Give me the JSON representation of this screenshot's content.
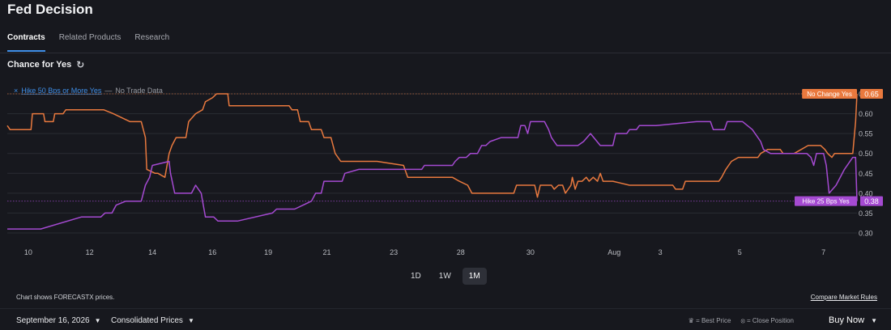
{
  "page": {
    "title": "Fed Decision"
  },
  "tabs": [
    {
      "label": "Contracts",
      "active": true
    },
    {
      "label": "Related Products",
      "active": false
    },
    {
      "label": "Research",
      "active": false
    }
  ],
  "section": {
    "title": "Chance for Yes",
    "refresh_icon": "refresh-icon"
  },
  "legend": {
    "remove_icon": "×",
    "series_label": "Hike 50 Bps or More Yes",
    "separator": "—",
    "note": "No Trade Data"
  },
  "range_buttons": [
    {
      "label": "1D",
      "active": false
    },
    {
      "label": "1W",
      "active": false
    },
    {
      "label": "1M",
      "active": true
    }
  ],
  "footnote": "Chart shows FORECASTX prices.",
  "compare_link": "Compare Market Rules",
  "bottom": {
    "date_select": "September 16, 2026",
    "price_select": "Consolidated Prices",
    "best_price_key": "= Best Price",
    "close_position_key": "= Close Position",
    "buy_now": "Buy Now",
    "best_price_icon": "crown-icon",
    "close_position_icon": "close-circle-icon"
  },
  "colors": {
    "no_change": "#e9793e",
    "hike25": "#a54ad2",
    "accent": "#3f8fe8",
    "background": "#17181e"
  },
  "chart_data": {
    "type": "line",
    "ylim": [
      0.275,
      0.675
    ],
    "y_ticks": [
      "0.30",
      "0.35",
      "0.40",
      "0.45",
      "0.50",
      "0.55",
      "0.60",
      "0.65"
    ],
    "y_tick_values": [
      0.3,
      0.35,
      0.4,
      0.45,
      0.5,
      0.55,
      0.6,
      0.65
    ],
    "x_tick_labels": [
      "10",
      "12",
      "14",
      "16",
      "19",
      "21",
      "23",
      "28",
      "30",
      "Aug",
      "3",
      "5",
      "7"
    ],
    "x_tick_positions": [
      0.3,
      4.7,
      9.2,
      13.5,
      17.5,
      21.7,
      26.5,
      31.3,
      36.3,
      42.3,
      45.6,
      51.3,
      57.3
    ],
    "xlim": [
      -1.2,
      59.7
    ],
    "grid": true,
    "series": [
      {
        "name": "No Change Yes",
        "color": "#e9793e",
        "last_label": "0.65",
        "points": [
          [
            -1.2,
            0.57
          ],
          [
            -1.0,
            0.56
          ],
          [
            0.5,
            0.56
          ],
          [
            0.6,
            0.6
          ],
          [
            1.4,
            0.6
          ],
          [
            1.5,
            0.58
          ],
          [
            2.1,
            0.58
          ],
          [
            2.2,
            0.6
          ],
          [
            2.8,
            0.6
          ],
          [
            3.0,
            0.61
          ],
          [
            5.7,
            0.61
          ],
          [
            6.4,
            0.6
          ],
          [
            7.6,
            0.58
          ],
          [
            8.4,
            0.58
          ],
          [
            8.7,
            0.54
          ],
          [
            8.8,
            0.46
          ],
          [
            9.4,
            0.45
          ],
          [
            9.6,
            0.45
          ],
          [
            10.1,
            0.44
          ],
          [
            10.4,
            0.5
          ],
          [
            10.6,
            0.52
          ],
          [
            10.9,
            0.54
          ],
          [
            11.6,
            0.54
          ],
          [
            11.8,
            0.58
          ],
          [
            12.3,
            0.6
          ],
          [
            12.8,
            0.61
          ],
          [
            13.0,
            0.63
          ],
          [
            13.5,
            0.64
          ],
          [
            13.8,
            0.65
          ],
          [
            14.6,
            0.65
          ],
          [
            14.7,
            0.62
          ],
          [
            19.0,
            0.62
          ],
          [
            19.2,
            0.61
          ],
          [
            19.6,
            0.61
          ],
          [
            19.8,
            0.58
          ],
          [
            20.4,
            0.58
          ],
          [
            20.6,
            0.56
          ],
          [
            21.3,
            0.56
          ],
          [
            21.5,
            0.54
          ],
          [
            22.0,
            0.54
          ],
          [
            22.3,
            0.5
          ],
          [
            22.7,
            0.48
          ],
          [
            25.3,
            0.48
          ],
          [
            27.2,
            0.47
          ],
          [
            27.5,
            0.44
          ],
          [
            30.7,
            0.44
          ],
          [
            31.2,
            0.43
          ],
          [
            31.8,
            0.42
          ],
          [
            32.1,
            0.4
          ],
          [
            35.1,
            0.4
          ],
          [
            35.3,
            0.42
          ],
          [
            36.6,
            0.42
          ],
          [
            36.8,
            0.39
          ],
          [
            37.0,
            0.42
          ],
          [
            37.8,
            0.42
          ],
          [
            38.0,
            0.41
          ],
          [
            38.3,
            0.42
          ],
          [
            38.6,
            0.42
          ],
          [
            38.8,
            0.4
          ],
          [
            39.2,
            0.42
          ],
          [
            39.3,
            0.44
          ],
          [
            39.5,
            0.41
          ],
          [
            39.7,
            0.43
          ],
          [
            40.0,
            0.43
          ],
          [
            40.3,
            0.44
          ],
          [
            40.5,
            0.43
          ],
          [
            40.8,
            0.44
          ],
          [
            41.1,
            0.43
          ],
          [
            41.3,
            0.45
          ],
          [
            41.5,
            0.43
          ],
          [
            42.2,
            0.43
          ],
          [
            43.4,
            0.42
          ],
          [
            46.5,
            0.42
          ],
          [
            46.7,
            0.41
          ],
          [
            47.2,
            0.41
          ],
          [
            47.4,
            0.43
          ],
          [
            49.8,
            0.43
          ],
          [
            50.0,
            0.44
          ],
          [
            50.3,
            0.46
          ],
          [
            50.7,
            0.48
          ],
          [
            51.2,
            0.49
          ],
          [
            52.6,
            0.49
          ],
          [
            52.8,
            0.5
          ],
          [
            53.3,
            0.51
          ],
          [
            54.2,
            0.51
          ],
          [
            54.4,
            0.5
          ],
          [
            55.2,
            0.5
          ],
          [
            55.7,
            0.51
          ],
          [
            56.2,
            0.52
          ],
          [
            57.1,
            0.52
          ],
          [
            57.4,
            0.51
          ],
          [
            57.6,
            0.5
          ],
          [
            57.9,
            0.49
          ],
          [
            58.1,
            0.5
          ],
          [
            59.4,
            0.5
          ],
          [
            59.6,
            0.58
          ],
          [
            59.7,
            0.65
          ]
        ]
      },
      {
        "name": "Hike 25 Bps Yes",
        "color": "#a54ad2",
        "last_label": "0.38",
        "points": [
          [
            -1.2,
            0.31
          ],
          [
            -1.0,
            0.31
          ],
          [
            1.2,
            0.31
          ],
          [
            4.1,
            0.34
          ],
          [
            5.5,
            0.34
          ],
          [
            5.8,
            0.35
          ],
          [
            6.3,
            0.35
          ],
          [
            6.6,
            0.37
          ],
          [
            7.3,
            0.38
          ],
          [
            8.4,
            0.38
          ],
          [
            8.7,
            0.42
          ],
          [
            9.0,
            0.44
          ],
          [
            9.2,
            0.47
          ],
          [
            10.4,
            0.48
          ],
          [
            10.5,
            0.45
          ],
          [
            10.8,
            0.4
          ],
          [
            12.0,
            0.4
          ],
          [
            12.3,
            0.42
          ],
          [
            12.7,
            0.4
          ],
          [
            12.8,
            0.38
          ],
          [
            13.0,
            0.34
          ],
          [
            13.6,
            0.34
          ],
          [
            13.9,
            0.33
          ],
          [
            15.3,
            0.33
          ],
          [
            17.8,
            0.35
          ],
          [
            18.1,
            0.36
          ],
          [
            19.4,
            0.36
          ],
          [
            20.6,
            0.38
          ],
          [
            20.9,
            0.4
          ],
          [
            21.3,
            0.4
          ],
          [
            21.5,
            0.43
          ],
          [
            22.8,
            0.43
          ],
          [
            23.0,
            0.45
          ],
          [
            24.0,
            0.46
          ],
          [
            28.5,
            0.46
          ],
          [
            28.7,
            0.47
          ],
          [
            30.7,
            0.47
          ],
          [
            30.9,
            0.48
          ],
          [
            31.2,
            0.49
          ],
          [
            31.7,
            0.49
          ],
          [
            32.0,
            0.5
          ],
          [
            32.5,
            0.5
          ],
          [
            32.8,
            0.52
          ],
          [
            33.1,
            0.52
          ],
          [
            33.4,
            0.53
          ],
          [
            34.2,
            0.54
          ],
          [
            35.4,
            0.54
          ],
          [
            35.6,
            0.57
          ],
          [
            35.9,
            0.57
          ],
          [
            36.1,
            0.55
          ],
          [
            36.3,
            0.58
          ],
          [
            37.3,
            0.58
          ],
          [
            37.6,
            0.56
          ],
          [
            37.8,
            0.54
          ],
          [
            38.0,
            0.53
          ],
          [
            38.2,
            0.52
          ],
          [
            39.7,
            0.52
          ],
          [
            40.1,
            0.53
          ],
          [
            40.6,
            0.55
          ],
          [
            41.3,
            0.52
          ],
          [
            42.2,
            0.52
          ],
          [
            42.4,
            0.55
          ],
          [
            43.2,
            0.55
          ],
          [
            43.4,
            0.56
          ],
          [
            43.9,
            0.56
          ],
          [
            44.1,
            0.57
          ],
          [
            45.3,
            0.57
          ],
          [
            48.2,
            0.58
          ],
          [
            49.2,
            0.58
          ],
          [
            49.4,
            0.56
          ],
          [
            50.2,
            0.56
          ],
          [
            50.4,
            0.58
          ],
          [
            51.5,
            0.58
          ],
          [
            52.2,
            0.56
          ],
          [
            52.8,
            0.53
          ],
          [
            53.0,
            0.51
          ],
          [
            53.5,
            0.5
          ],
          [
            56.1,
            0.5
          ],
          [
            56.4,
            0.49
          ],
          [
            56.6,
            0.47
          ],
          [
            56.8,
            0.5
          ],
          [
            57.3,
            0.5
          ],
          [
            57.5,
            0.47
          ],
          [
            57.7,
            0.4
          ],
          [
            58.2,
            0.42
          ],
          [
            58.8,
            0.46
          ],
          [
            59.4,
            0.49
          ],
          [
            59.6,
            0.49
          ],
          [
            59.7,
            0.38
          ]
        ]
      }
    ]
  }
}
